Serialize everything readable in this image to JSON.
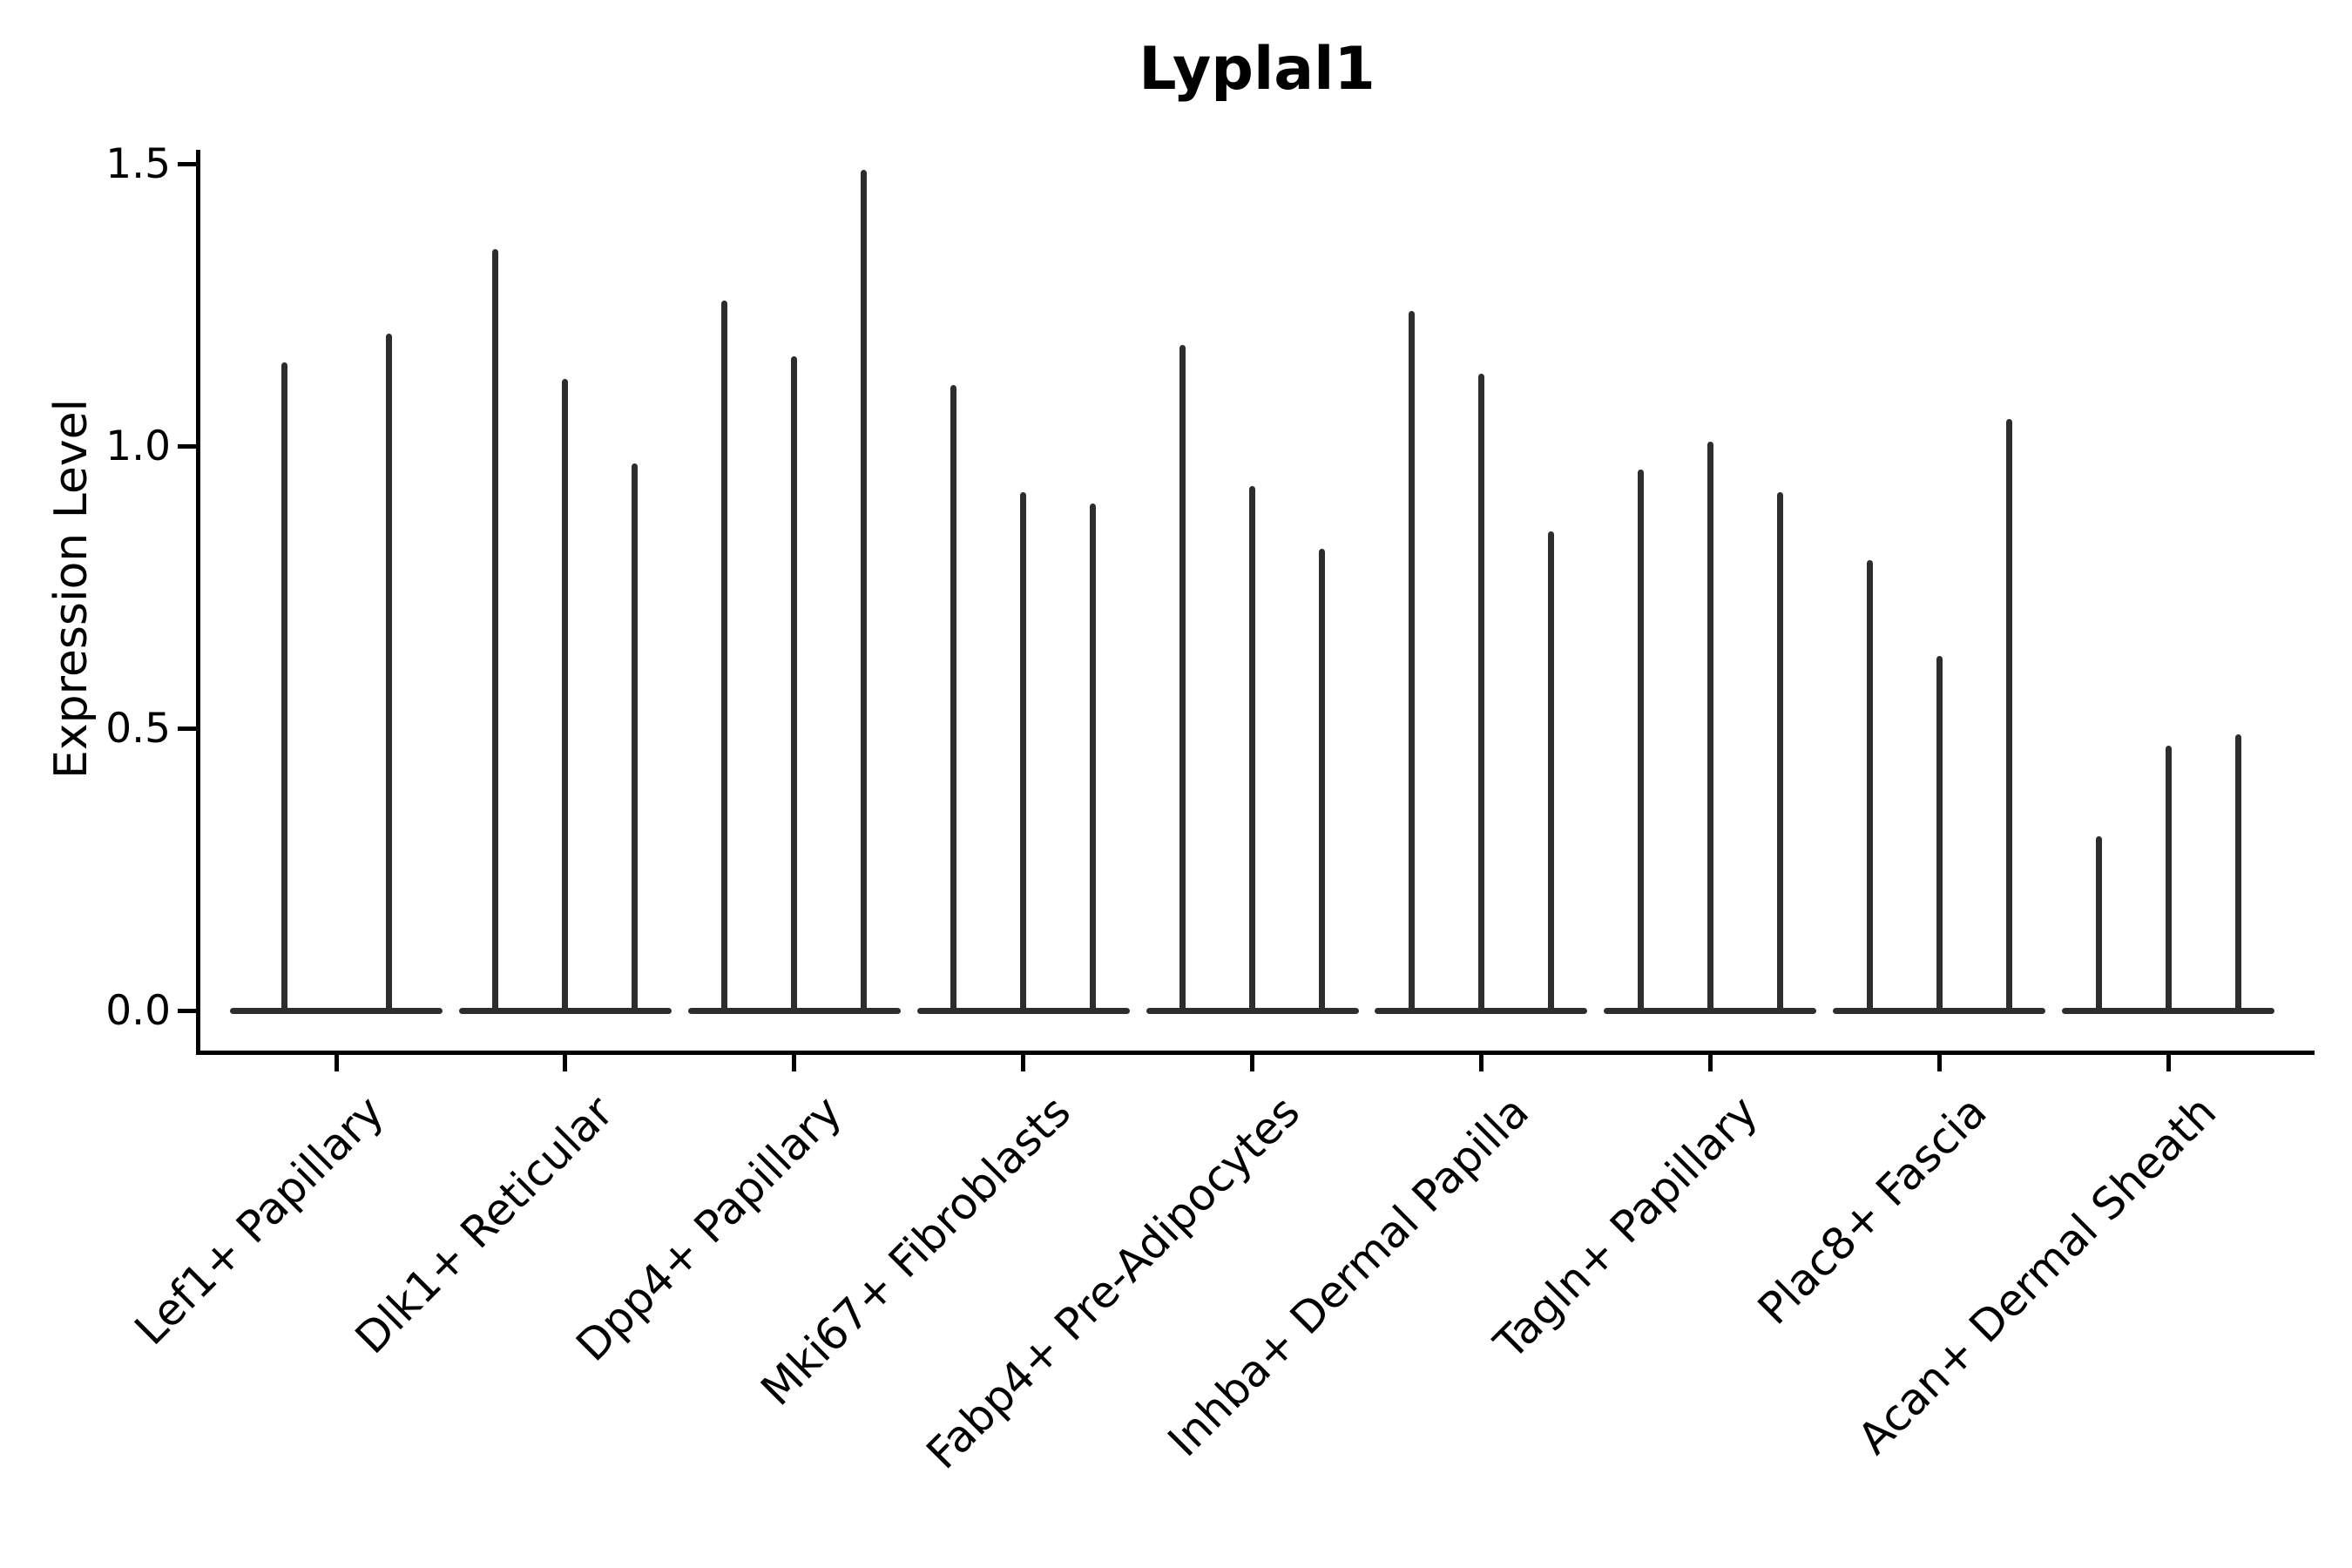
{
  "chart_data": {
    "type": "violin",
    "title": "Lyplal1",
    "xlabel": "",
    "ylabel": "Expression Level",
    "yticks": [
      0.0,
      0.5,
      1.0,
      1.5
    ],
    "ytick_labels": [
      "0.0",
      "0.5",
      "1.0",
      "1.5"
    ],
    "ylim": [
      -0.07,
      1.53
    ],
    "grid": false,
    "legend": "none",
    "baseline_value": 0.0,
    "categories": [
      "Lef1+ Papillary",
      "Dlk1+ Reticular",
      "Dpp4+ Papillary",
      "Mki67+ Fibroblasts",
      "Fabp4+ Pre-Adipocytes",
      "Inhba+ Dermal Papilla",
      "Tagln+ Papillary",
      "Plac8+ Fascia",
      "Acan+ Dermal Sheath"
    ],
    "groups": [
      {
        "category": "Lef1+ Papillary",
        "violin_maxima": [
          1.15,
          1.2
        ]
      },
      {
        "category": "Dlk1+ Reticular",
        "violin_maxima": [
          1.35,
          1.12,
          0.97
        ]
      },
      {
        "category": "Dpp4+ Papillary",
        "violin_maxima": [
          1.26,
          1.16,
          1.49
        ]
      },
      {
        "category": "Mki67+ Fibroblasts",
        "violin_maxima": [
          1.11,
          0.92,
          0.9
        ]
      },
      {
        "category": "Fabp4+ Pre-Adipocytes",
        "violin_maxima": [
          1.18,
          0.93,
          0.82
        ]
      },
      {
        "category": "Inhba+ Dermal Papilla",
        "violin_maxima": [
          1.24,
          1.13,
          0.85
        ]
      },
      {
        "category": "Tagln+ Papillary",
        "violin_maxima": [
          0.96,
          1.01,
          0.92
        ]
      },
      {
        "category": "Plac8+ Fascia",
        "violin_maxima": [
          0.8,
          0.63,
          1.05
        ]
      },
      {
        "category": "Acan+ Dermal Sheath",
        "violin_maxima": [
          0.31,
          0.47,
          0.49
        ]
      }
    ],
    "colors": {
      "violin": "#2d2d2d",
      "axis": "#000000"
    }
  }
}
